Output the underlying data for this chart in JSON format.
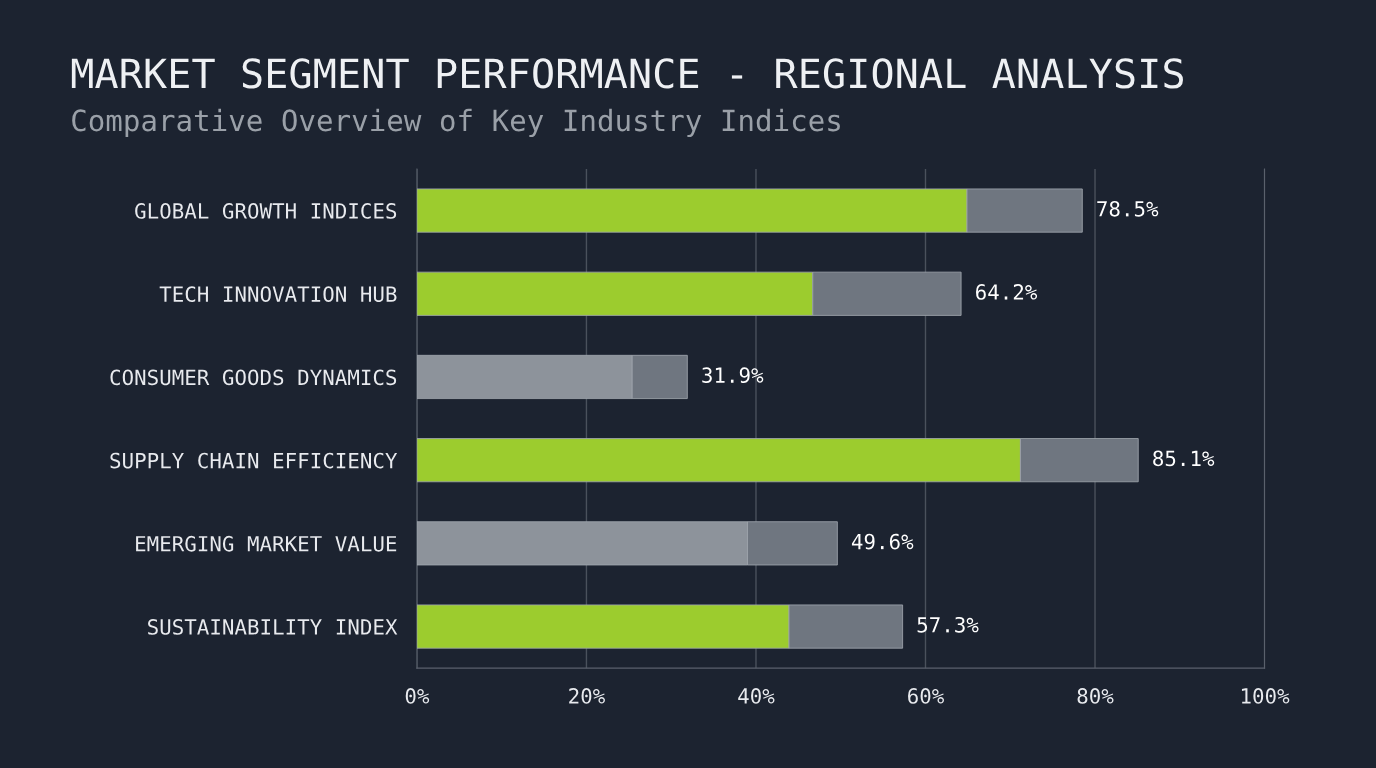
{
  "chart_data": {
    "type": "bar",
    "orientation": "horizontal",
    "stacked": true,
    "title": "MARKET SEGMENT PERFORMANCE - REGIONAL ANALYSIS",
    "subtitle": "Comparative Overview of Key Industry Indices",
    "categories": [
      "GLOBAL GROWTH INDICES",
      "TECH INNOVATION HUB",
      "CONSUMER GOODS DYNAMICS",
      "SUPPLY CHAIN EFFICIENCY",
      "EMERGING MARKET VALUE",
      "SUSTAINABILITY INDEX"
    ],
    "series": [
      {
        "colors": [
          "#9ccc2e",
          "#9ccc2e",
          "#8d939b",
          "#9ccc2e",
          "#8d939b",
          "#9ccc2e"
        ],
        "values": [
          64.9,
          46.7,
          25.4,
          71.2,
          39.0,
          43.9
        ]
      },
      {
        "color": "#6f7680",
        "values": [
          13.6,
          17.5,
          6.5,
          13.9,
          10.6,
          13.4
        ]
      }
    ],
    "totals": [
      "78.5%",
      "64.2%",
      "31.9%",
      "85.1%",
      "49.6%",
      "57.3%"
    ],
    "xlim": [
      0,
      100
    ],
    "xticks": [
      {
        "value": 0,
        "label": "0%"
      },
      {
        "value": 20,
        "label": "20%"
      },
      {
        "value": 40,
        "label": "40%"
      },
      {
        "value": 60,
        "label": "60%"
      },
      {
        "value": 80,
        "label": "80%"
      },
      {
        "value": 100,
        "label": "100%"
      }
    ],
    "grid": "x"
  }
}
